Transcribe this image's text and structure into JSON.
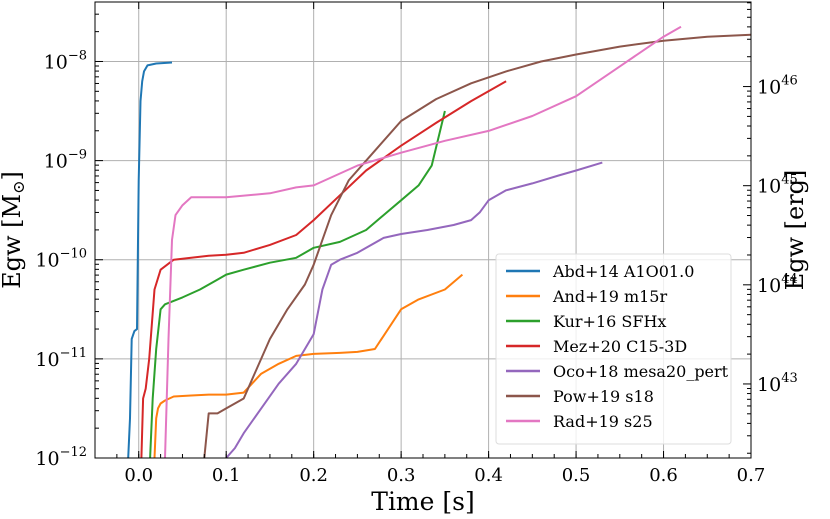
{
  "chart_data": {
    "type": "line",
    "xlabel": "Time [s]",
    "ylabel_left": {
      "base": "Egw [M",
      "sub": "⊙",
      "close": "]"
    },
    "ylabel_right": "Egw [erg]",
    "xlim": [
      -0.05,
      0.7
    ],
    "ylim_log10": [
      -12,
      -7.4
    ],
    "grid": true,
    "legend_position": "lower-right",
    "x_ticks": [
      {
        "value": 0.0,
        "label": "0.0"
      },
      {
        "value": 0.1,
        "label": "0.1"
      },
      {
        "value": 0.2,
        "label": "0.2"
      },
      {
        "value": 0.3,
        "label": "0.3"
      },
      {
        "value": 0.4,
        "label": "0.4"
      },
      {
        "value": 0.5,
        "label": "0.5"
      },
      {
        "value": 0.6,
        "label": "0.6"
      },
      {
        "value": 0.7,
        "label": "0.7"
      }
    ],
    "y_ticks_left": [
      {
        "exp": -12,
        "base": "10",
        "sup": "−12"
      },
      {
        "exp": -11,
        "base": "10",
        "sup": "−11"
      },
      {
        "exp": -10,
        "base": "10",
        "sup": "−10"
      },
      {
        "exp": -9,
        "base": "10",
        "sup": "−9"
      },
      {
        "exp": -8,
        "base": "10",
        "sup": "−8"
      }
    ],
    "y_ticks_right": [
      {
        "exp_erg": 43,
        "base": "10",
        "sup": "43"
      },
      {
        "exp_erg": 44,
        "base": "10",
        "sup": "44"
      },
      {
        "exp_erg": 45,
        "base": "10",
        "sup": "45"
      },
      {
        "exp_erg": 46,
        "base": "10",
        "sup": "46"
      }
    ],
    "msun_erg_log10": 54.253,
    "series": [
      {
        "name": "Abd+14 A1O01.0",
        "color": "#1f77b4",
        "x": [
          -0.012,
          -0.01,
          -0.008,
          -0.005,
          -0.002,
          0.0,
          0.002,
          0.004,
          0.006,
          0.01,
          0.02,
          0.038
        ],
        "y": [
          -12.0,
          -11.6,
          -10.8,
          -10.72,
          -10.7,
          -9.2,
          -8.4,
          -8.2,
          -8.1,
          -8.04,
          -8.02,
          -8.01
        ]
      },
      {
        "name": "And+19 m15r",
        "color": "#ff7f0e",
        "x": [
          0.018,
          0.02,
          0.022,
          0.025,
          0.03,
          0.04,
          0.06,
          0.08,
          0.1,
          0.12,
          0.14,
          0.16,
          0.18,
          0.2,
          0.23,
          0.25,
          0.27,
          0.3,
          0.32,
          0.35,
          0.37
        ],
        "y": [
          -12.0,
          -11.6,
          -11.5,
          -11.45,
          -11.42,
          -11.38,
          -11.37,
          -11.36,
          -11.36,
          -11.34,
          -11.15,
          -11.05,
          -10.97,
          -10.95,
          -10.94,
          -10.93,
          -10.9,
          -10.5,
          -10.4,
          -10.3,
          -10.15
        ]
      },
      {
        "name": "Kur+16 SFHx",
        "color": "#2ca02c",
        "x": [
          0.013,
          0.016,
          0.02,
          0.025,
          0.03,
          0.05,
          0.07,
          0.09,
          0.1,
          0.12,
          0.15,
          0.18,
          0.2,
          0.23,
          0.26,
          0.28,
          0.3,
          0.32,
          0.335,
          0.35
        ],
        "y": [
          -12.0,
          -11.4,
          -10.9,
          -10.5,
          -10.45,
          -10.38,
          -10.3,
          -10.2,
          -10.15,
          -10.1,
          -10.03,
          -9.98,
          -9.88,
          -9.82,
          -9.7,
          -9.55,
          -9.4,
          -9.25,
          -9.05,
          -8.5
        ]
      },
      {
        "name": "Mez+20 C15-3D",
        "color": "#d62728",
        "x": [
          0.003,
          0.005,
          0.008,
          0.012,
          0.018,
          0.025,
          0.04,
          0.06,
          0.08,
          0.1,
          0.12,
          0.15,
          0.18,
          0.2,
          0.23,
          0.26,
          0.3,
          0.34,
          0.38,
          0.42
        ],
        "y": [
          -12.0,
          -11.4,
          -11.3,
          -11.0,
          -10.3,
          -10.1,
          -10.0,
          -9.98,
          -9.96,
          -9.95,
          -9.93,
          -9.85,
          -9.75,
          -9.6,
          -9.35,
          -9.1,
          -8.85,
          -8.62,
          -8.4,
          -8.2
        ]
      },
      {
        "name": "Oco+18 mesa20_pert",
        "color": "#9467bd",
        "x": [
          0.1,
          0.11,
          0.12,
          0.14,
          0.16,
          0.18,
          0.2,
          0.21,
          0.22,
          0.23,
          0.25,
          0.28,
          0.3,
          0.33,
          0.36,
          0.38,
          0.39,
          0.4,
          0.42,
          0.45,
          0.48,
          0.5,
          0.53
        ],
        "y": [
          -12.0,
          -11.9,
          -11.75,
          -11.5,
          -11.25,
          -11.05,
          -10.75,
          -10.3,
          -10.05,
          -10.0,
          -9.93,
          -9.78,
          -9.74,
          -9.7,
          -9.65,
          -9.6,
          -9.52,
          -9.4,
          -9.3,
          -9.23,
          -9.15,
          -9.1,
          -9.02
        ]
      },
      {
        "name": "Pow+19 s18",
        "color": "#8c564b",
        "x": [
          0.075,
          0.08,
          0.09,
          0.1,
          0.12,
          0.13,
          0.15,
          0.17,
          0.19,
          0.2,
          0.21,
          0.22,
          0.24,
          0.27,
          0.3,
          0.34,
          0.38,
          0.42,
          0.46,
          0.5,
          0.55,
          0.6,
          0.65,
          0.7
        ],
        "y": [
          -12.0,
          -11.55,
          -11.55,
          -11.5,
          -11.4,
          -11.2,
          -10.8,
          -10.5,
          -10.25,
          -10.05,
          -9.8,
          -9.55,
          -9.2,
          -8.9,
          -8.6,
          -8.38,
          -8.22,
          -8.1,
          -8.0,
          -7.93,
          -7.85,
          -7.79,
          -7.75,
          -7.73
        ]
      },
      {
        "name": "Rad+19 s25",
        "color": "#e377c2",
        "x": [
          0.03,
          0.034,
          0.038,
          0.042,
          0.05,
          0.06,
          0.1,
          0.15,
          0.18,
          0.2,
          0.25,
          0.3,
          0.35,
          0.4,
          0.45,
          0.5,
          0.55,
          0.6,
          0.62
        ],
        "y": [
          -12.0,
          -10.8,
          -9.8,
          -9.55,
          -9.45,
          -9.37,
          -9.37,
          -9.33,
          -9.27,
          -9.25,
          -9.05,
          -8.92,
          -8.8,
          -8.7,
          -8.55,
          -8.35,
          -8.05,
          -7.75,
          -7.65
        ]
      }
    ]
  }
}
